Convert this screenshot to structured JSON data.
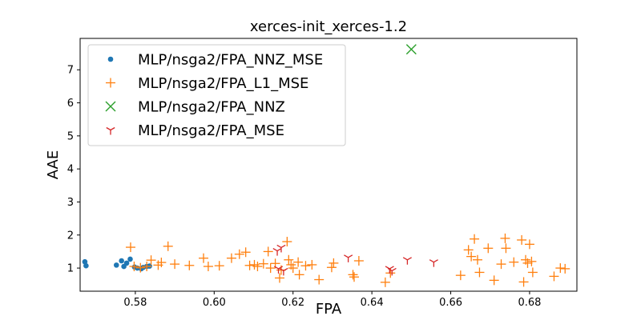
{
  "chart_data": {
    "type": "scatter",
    "title": "xerces-init_xerces-1.2",
    "xlabel": "FPA",
    "ylabel": "AAE",
    "xlim": [
      0.566,
      0.692
    ],
    "ylim": [
      0.3,
      7.95
    ],
    "xticks": [
      0.58,
      0.6,
      0.62,
      0.64,
      0.66,
      0.68
    ],
    "xtick_labels": [
      "0.58",
      "0.60",
      "0.62",
      "0.64",
      "0.66",
      "0.68"
    ],
    "yticks": [
      1,
      2,
      3,
      4,
      5,
      6,
      7
    ],
    "ytick_labels": [
      "1",
      "2",
      "3",
      "4",
      "5",
      "6",
      "7"
    ],
    "legend_position": "top-left",
    "grid": false,
    "series": [
      {
        "name": "MLP/nsga2/FPA_NNZ_MSE",
        "marker": "dot",
        "color": "#1f77b4",
        "points": [
          [
            0.5672,
            1.19
          ],
          [
            0.5675,
            1.07
          ],
          [
            0.5752,
            1.09
          ],
          [
            0.5765,
            1.22
          ],
          [
            0.5771,
            1.05
          ],
          [
            0.5778,
            1.15
          ],
          [
            0.5787,
            1.27
          ],
          [
            0.5798,
            1.03
          ],
          [
            0.5805,
            1.0
          ],
          [
            0.5815,
            0.98
          ],
          [
            0.582,
            1.02
          ],
          [
            0.5829,
            1.05
          ],
          [
            0.5836,
            1.06
          ]
        ]
      },
      {
        "name": "MLP/nsga2/FPA_L1_MSE",
        "marker": "plus",
        "color": "#ff7f0e",
        "points": [
          [
            0.5788,
            1.63
          ],
          [
            0.5797,
            1.05
          ],
          [
            0.5813,
            1.01
          ],
          [
            0.5829,
            1.05
          ],
          [
            0.584,
            1.24
          ],
          [
            0.5858,
            1.09
          ],
          [
            0.5866,
            1.17
          ],
          [
            0.5883,
            1.66
          ],
          [
            0.59,
            1.12
          ],
          [
            0.5937,
            1.08
          ],
          [
            0.5973,
            1.3
          ],
          [
            0.5985,
            1.05
          ],
          [
            0.6013,
            1.07
          ],
          [
            0.6044,
            1.3
          ],
          [
            0.6064,
            1.42
          ],
          [
            0.608,
            1.48
          ],
          [
            0.609,
            1.08
          ],
          [
            0.6102,
            1.1
          ],
          [
            0.611,
            1.05
          ],
          [
            0.6125,
            1.13
          ],
          [
            0.6137,
            1.5
          ],
          [
            0.6143,
            1.0
          ],
          [
            0.6155,
            1.14
          ],
          [
            0.6166,
            0.7
          ],
          [
            0.617,
            0.94
          ],
          [
            0.6185,
            1.8
          ],
          [
            0.6189,
            1.25
          ],
          [
            0.6195,
            1.1
          ],
          [
            0.62,
            1.0
          ],
          [
            0.6213,
            1.18
          ],
          [
            0.6216,
            0.8
          ],
          [
            0.6232,
            1.07
          ],
          [
            0.6248,
            1.1
          ],
          [
            0.6266,
            0.65
          ],
          [
            0.6298,
            1.02
          ],
          [
            0.6303,
            1.15
          ],
          [
            0.6352,
            0.8
          ],
          [
            0.6355,
            0.73
          ],
          [
            0.6367,
            1.22
          ],
          [
            0.6434,
            0.57
          ],
          [
            0.6447,
            0.85
          ],
          [
            0.6625,
            0.78
          ],
          [
            0.6645,
            1.55
          ],
          [
            0.6652,
            1.35
          ],
          [
            0.666,
            1.88
          ],
          [
            0.6668,
            1.25
          ],
          [
            0.6673,
            0.87
          ],
          [
            0.6695,
            1.6
          ],
          [
            0.671,
            0.63
          ],
          [
            0.6728,
            1.12
          ],
          [
            0.6738,
            1.9
          ],
          [
            0.674,
            1.6
          ],
          [
            0.676,
            1.18
          ],
          [
            0.678,
            1.85
          ],
          [
            0.6785,
            0.58
          ],
          [
            0.679,
            1.25
          ],
          [
            0.6795,
            1.15
          ],
          [
            0.68,
            1.72
          ],
          [
            0.6805,
            1.2
          ],
          [
            0.6808,
            0.87
          ],
          [
            0.6862,
            0.75
          ],
          [
            0.6878,
            1.0
          ],
          [
            0.689,
            0.98
          ]
        ]
      },
      {
        "name": "MLP/nsga2/FPA_NNZ",
        "marker": "x",
        "color": "#2ca02c",
        "points": [
          [
            0.65,
            7.62
          ]
        ]
      },
      {
        "name": "MLP/nsga2/FPA_MSE",
        "marker": "tri_down",
        "color": "#d62728",
        "points": [
          [
            0.616,
            1.52
          ],
          [
            0.6163,
            0.98
          ],
          [
            0.617,
            1.62
          ],
          [
            0.6176,
            0.92
          ],
          [
            0.634,
            1.32
          ],
          [
            0.6445,
            0.98
          ],
          [
            0.6451,
            0.92
          ],
          [
            0.649,
            1.25
          ],
          [
            0.6557,
            1.18
          ]
        ]
      }
    ]
  }
}
